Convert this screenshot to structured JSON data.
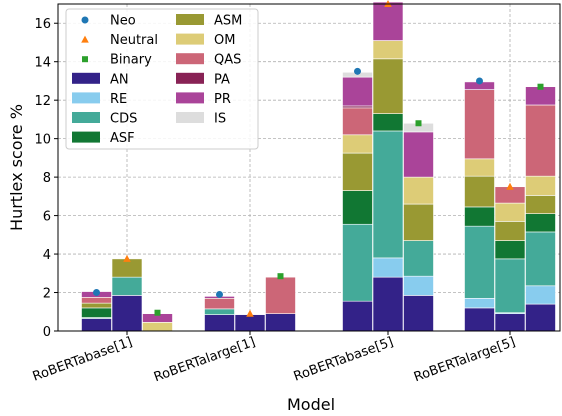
{
  "chart_data": {
    "type": "bar",
    "subtype": "stacked-grouped-with-markers",
    "xlabel": "Model",
    "ylabel": "Hurtlex score %",
    "ylim": [
      0,
      17
    ],
    "yticks": [
      0,
      2,
      4,
      6,
      8,
      10,
      12,
      14,
      16
    ],
    "grid": true,
    "legend_position": "top-left",
    "categories": [
      "RoBERTabase[1]",
      "RoBERTalarge[1]",
      "RoBERTabase[5]",
      "RoBERTalarge[5]"
    ],
    "groups": [
      "Neo",
      "Neutral",
      "Binary"
    ],
    "series": [
      {
        "name": "AN",
        "color": "#332288",
        "values": [
          [
            0.65,
            1.85,
            0.0
          ],
          [
            0.85,
            0.85,
            0.9
          ],
          [
            1.55,
            2.8,
            1.85
          ],
          [
            1.2,
            0.9,
            1.4
          ]
        ]
      },
      {
        "name": "RE",
        "color": "#88CCEE",
        "values": [
          [
            0,
            0,
            0
          ],
          [
            0,
            0,
            0
          ],
          [
            0,
            1.0,
            1.0
          ],
          [
            0.5,
            0.05,
            0.95
          ]
        ]
      },
      {
        "name": "CDS",
        "color": "#44AA99",
        "values": [
          [
            0.05,
            0.95,
            0.0
          ],
          [
            0.3,
            0,
            0
          ],
          [
            4.0,
            6.6,
            1.85
          ],
          [
            3.75,
            2.8,
            2.8
          ]
        ]
      },
      {
        "name": "ASF",
        "color": "#117733",
        "values": [
          [
            0.5,
            0,
            0
          ],
          [
            0,
            0,
            0
          ],
          [
            1.75,
            0.9,
            0
          ],
          [
            1.0,
            0.95,
            0.95
          ]
        ]
      },
      {
        "name": "ASM",
        "color": "#999933",
        "values": [
          [
            0.25,
            0.95,
            0
          ],
          [
            0,
            0,
            0
          ],
          [
            1.95,
            2.85,
            1.9
          ],
          [
            1.6,
            1.0,
            0.95
          ]
        ]
      },
      {
        "name": "OM",
        "color": "#DDCC77",
        "values": [
          [
            0,
            0,
            0.45
          ],
          [
            0,
            0,
            0
          ],
          [
            0.95,
            0.95,
            1.4
          ],
          [
            0.9,
            0.95,
            1.0
          ]
        ]
      },
      {
        "name": "QAS",
        "color": "#CC6677",
        "values": [
          [
            0.3,
            0,
            0
          ],
          [
            0.55,
            0,
            1.9
          ],
          [
            1.4,
            0,
            0
          ],
          [
            3.6,
            0.85,
            3.7
          ]
        ]
      },
      {
        "name": "PA",
        "color": "#882255",
        "values": [
          [
            0,
            0,
            0
          ],
          [
            0,
            0,
            0
          ],
          [
            0.1,
            0,
            0
          ],
          [
            0,
            0,
            0
          ]
        ]
      },
      {
        "name": "PR",
        "color": "#AA4499",
        "values": [
          [
            0.3,
            0,
            0.45
          ],
          [
            0.1,
            0,
            0
          ],
          [
            1.5,
            2.0,
            2.35
          ],
          [
            0.4,
            0,
            0.95
          ]
        ]
      },
      {
        "name": "IS",
        "color": "#DDDDDD",
        "values": [
          [
            0,
            0,
            0
          ],
          [
            0,
            0,
            0
          ],
          [
            0.25,
            0,
            0.45
          ],
          [
            0,
            0,
            0
          ]
        ]
      }
    ],
    "marker_series": [
      {
        "name": "Neo",
        "color": "#1F77B4",
        "shape": "circle",
        "values": [
          2.0,
          1.9,
          13.5,
          13.0
        ]
      },
      {
        "name": "Neutral",
        "color": "#FF7F0E",
        "shape": "triangle",
        "values": [
          3.75,
          0.9,
          17.0,
          7.5
        ]
      },
      {
        "name": "Binary",
        "color": "#2CA02C",
        "shape": "square",
        "values": [
          0.95,
          2.85,
          10.8,
          12.7
        ]
      }
    ]
  }
}
